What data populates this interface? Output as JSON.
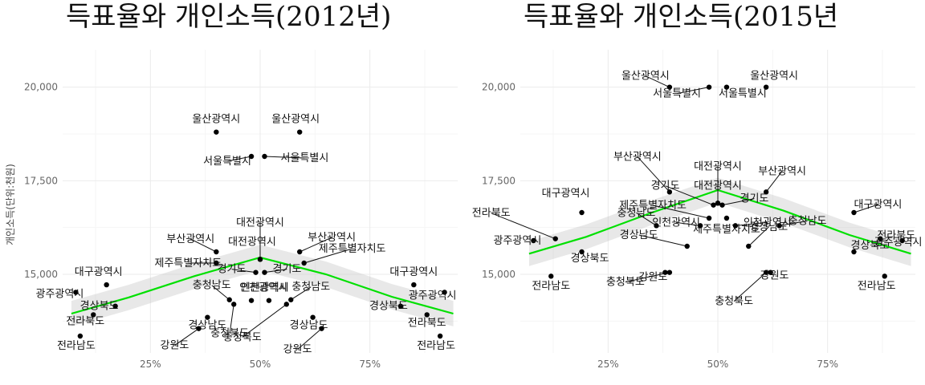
{
  "chart_data": [
    {
      "type": "scatter",
      "title": "득표율와  개인소득(2012년)",
      "xlabel": "",
      "ylabel": "개인소득(단위:천원)",
      "xlim": [
        0.05,
        0.95
      ],
      "ylim": [
        12900,
        21000
      ],
      "x_ticks": [
        {
          "value": 0.25,
          "label": "25%"
        },
        {
          "value": 0.5,
          "label": "50%"
        },
        {
          "value": 0.75,
          "label": "75%"
        }
      ],
      "y_ticks": [
        {
          "value": 15000,
          "label": "15,000"
        },
        {
          "value": 17500,
          "label": "17,500"
        },
        {
          "value": 20000,
          "label": "20,000"
        }
      ],
      "grid": true,
      "smooth": {
        "x": [
          0.07,
          0.2,
          0.35,
          0.5,
          0.65,
          0.8,
          0.94
        ],
        "y": [
          13950,
          14380,
          14950,
          15450,
          15000,
          14400,
          13950
        ],
        "se": 340,
        "color": "#00e000"
      },
      "points": [
        {
          "label": "울산광역시",
          "x": 0.4,
          "y": 18800
        },
        {
          "label": "울산광역시",
          "x": 0.59,
          "y": 18800
        },
        {
          "label": "서울특별시",
          "x": 0.48,
          "y": 18150
        },
        {
          "label": "서울특별시",
          "x": 0.51,
          "y": 18150
        },
        {
          "label": "대전광역시",
          "x": 0.5,
          "y": 15400
        },
        {
          "label": "대전광역시",
          "x": 0.5,
          "y": 15400
        },
        {
          "label": "부산광역시",
          "x": 0.4,
          "y": 15600
        },
        {
          "label": "부산광역시",
          "x": 0.59,
          "y": 15600
        },
        {
          "label": "제주특별자치도",
          "x": 0.4,
          "y": 15300
        },
        {
          "label": "제주특별자치도",
          "x": 0.6,
          "y": 15300
        },
        {
          "label": "경기도",
          "x": 0.49,
          "y": 15050
        },
        {
          "label": "경기도",
          "x": 0.51,
          "y": 15050
        },
        {
          "label": "대구광역시",
          "x": 0.15,
          "y": 14720
        },
        {
          "label": "대구광역시",
          "x": 0.85,
          "y": 14720
        },
        {
          "label": "광주광역시",
          "x": 0.08,
          "y": 14520
        },
        {
          "label": "광주광역시",
          "x": 0.92,
          "y": 14520
        },
        {
          "label": "충청남도",
          "x": 0.43,
          "y": 14320
        },
        {
          "label": "충청남도",
          "x": 0.57,
          "y": 14320
        },
        {
          "label": "인천광역시",
          "x": 0.48,
          "y": 14300
        },
        {
          "label": "인천광역시",
          "x": 0.52,
          "y": 14300
        },
        {
          "label": "경상북도",
          "x": 0.17,
          "y": 14150
        },
        {
          "label": "경상북도",
          "x": 0.82,
          "y": 14150
        },
        {
          "label": "전라북도",
          "x": 0.12,
          "y": 13920
        },
        {
          "label": "전라북도",
          "x": 0.88,
          "y": 13920
        },
        {
          "label": "경상남도",
          "x": 0.38,
          "y": 13850
        },
        {
          "label": "경상남도",
          "x": 0.62,
          "y": 13850
        },
        {
          "label": "충청북도",
          "x": 0.44,
          "y": 14200
        },
        {
          "label": "충청북도",
          "x": 0.56,
          "y": 14200
        },
        {
          "label": "강원도",
          "x": 0.36,
          "y": 13550
        },
        {
          "label": "강원도",
          "x": 0.64,
          "y": 13550
        },
        {
          "label": "전라남도",
          "x": 0.09,
          "y": 13350
        },
        {
          "label": "전라남도",
          "x": 0.91,
          "y": 13350
        }
      ]
    },
    {
      "type": "scatter",
      "title": "득표율와  개인소득(2015년",
      "xlabel": "",
      "ylabel": "",
      "xlim": [
        0.05,
        0.95
      ],
      "ylim": [
        12900,
        21000
      ],
      "x_ticks": [
        {
          "value": 0.25,
          "label": "25%"
        },
        {
          "value": 0.5,
          "label": "50%"
        },
        {
          "value": 0.75,
          "label": "75%"
        }
      ],
      "y_ticks": [
        {
          "value": 15000,
          "label": "15,000"
        },
        {
          "value": 17500,
          "label": "17,500"
        },
        {
          "value": 20000,
          "label": "20,000"
        }
      ],
      "grid": true,
      "smooth": {
        "x": [
          0.07,
          0.2,
          0.35,
          0.5,
          0.65,
          0.8,
          0.94
        ],
        "y": [
          15550,
          16000,
          16650,
          17250,
          16700,
          16050,
          15550
        ],
        "se": 330,
        "color": "#00e000"
      },
      "points": [
        {
          "label": "울산광역시",
          "x": 0.39,
          "y": 20000
        },
        {
          "label": "울산광역시",
          "x": 0.61,
          "y": 20000
        },
        {
          "label": "서울특별시",
          "x": 0.48,
          "y": 20000
        },
        {
          "label": "서울특별시",
          "x": 0.52,
          "y": 20000
        },
        {
          "label": "대전광역시",
          "x": 0.5,
          "y": 16900
        },
        {
          "label": "대전광역시",
          "x": 0.5,
          "y": 16900
        },
        {
          "label": "부산광역시",
          "x": 0.39,
          "y": 17200
        },
        {
          "label": "부산광역시",
          "x": 0.61,
          "y": 17200
        },
        {
          "label": "경기도",
          "x": 0.49,
          "y": 16850
        },
        {
          "label": "경기도",
          "x": 0.51,
          "y": 16850
        },
        {
          "label": "제주특별자치도",
          "x": 0.48,
          "y": 16500
        },
        {
          "label": "제주특별자치도",
          "x": 0.52,
          "y": 16500
        },
        {
          "label": "대구광역시",
          "x": 0.19,
          "y": 16650
        },
        {
          "label": "대구광역시",
          "x": 0.81,
          "y": 16650
        },
        {
          "label": "충청남도",
          "x": 0.36,
          "y": 16300
        },
        {
          "label": "충청남도",
          "x": 0.64,
          "y": 16300
        },
        {
          "label": "인천광역시",
          "x": 0.46,
          "y": 16300
        },
        {
          "label": "인천광역시",
          "x": 0.54,
          "y": 16300
        },
        {
          "label": "전라북도",
          "x": 0.13,
          "y": 15950
        },
        {
          "label": "전라북도",
          "x": 0.87,
          "y": 15950
        },
        {
          "label": "광주광역시",
          "x": 0.08,
          "y": 15900
        },
        {
          "label": "광주광역시",
          "x": 0.92,
          "y": 15900
        },
        {
          "label": "경상남도",
          "x": 0.43,
          "y": 15750
        },
        {
          "label": "경상남도",
          "x": 0.57,
          "y": 15750
        },
        {
          "label": "경상북도",
          "x": 0.19,
          "y": 15600
        },
        {
          "label": "경상북도",
          "x": 0.81,
          "y": 15600
        },
        {
          "label": "충청북도",
          "x": 0.39,
          "y": 15050
        },
        {
          "label": "충청북도",
          "x": 0.61,
          "y": 15050
        },
        {
          "label": "강원도",
          "x": 0.38,
          "y": 15050
        },
        {
          "label": "강원도",
          "x": 0.62,
          "y": 15050
        },
        {
          "label": "전라남도",
          "x": 0.12,
          "y": 14950
        },
        {
          "label": "전라남도",
          "x": 0.88,
          "y": 14950
        }
      ]
    }
  ]
}
